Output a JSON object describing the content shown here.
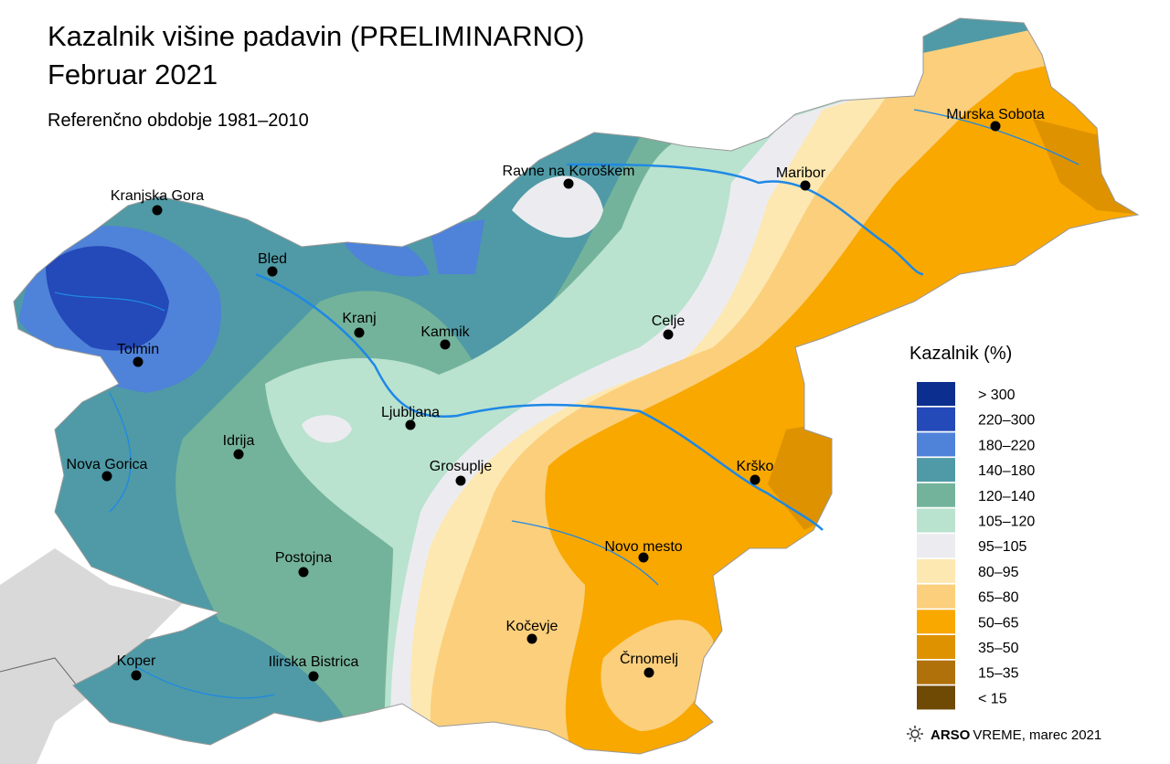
{
  "header": {
    "title": "Kazalnik višine padavin (PRELIMINARNO)",
    "subtitle": "Februar 2021",
    "reference": "Referenčno obdobje 1981–2010"
  },
  "cities": [
    {
      "name": "Kranjska Gora"
    },
    {
      "name": "Bled"
    },
    {
      "name": "Tolmin"
    },
    {
      "name": "Kranj"
    },
    {
      "name": "Kamnik"
    },
    {
      "name": "Ravne na Koroškem"
    },
    {
      "name": "Maribor"
    },
    {
      "name": "Murska Sobota"
    },
    {
      "name": "Celje"
    },
    {
      "name": "Ljubljana"
    },
    {
      "name": "Idrija"
    },
    {
      "name": "Nova Gorica"
    },
    {
      "name": "Grosuplje"
    },
    {
      "name": "Krško"
    },
    {
      "name": "Postojna"
    },
    {
      "name": "Novo mesto"
    },
    {
      "name": "Kočevje"
    },
    {
      "name": "Črnomelj"
    },
    {
      "name": "Koper"
    },
    {
      "name": "Ilirska Bistrica"
    }
  ],
  "legend": {
    "title": "Kazalnik (%)",
    "items": [
      {
        "label": "> 300",
        "color": "#0c2f8f"
      },
      {
        "label": "220–300",
        "color": "#2449b8"
      },
      {
        "label": "180–220",
        "color": "#4f82d9"
      },
      {
        "label": "140–180",
        "color": "#4f9aa6"
      },
      {
        "label": "120–140",
        "color": "#74b39b"
      },
      {
        "label": "105–120",
        "color": "#b9e2cf"
      },
      {
        "label": "95–105",
        "color": "#ececf0"
      },
      {
        "label": "80–95",
        "color": "#fde8b2"
      },
      {
        "label": "65–80",
        "color": "#fbcf7c"
      },
      {
        "label": "50–65",
        "color": "#f9a800"
      },
      {
        "label": "35–50",
        "color": "#de9200"
      },
      {
        "label": "15–35",
        "color": "#b0700a"
      },
      {
        "label": "< 15",
        "color": "#6f4a05"
      }
    ]
  },
  "footer": {
    "brand": "ARSO",
    "product": "VREME",
    "date": ", marec 2021"
  }
}
